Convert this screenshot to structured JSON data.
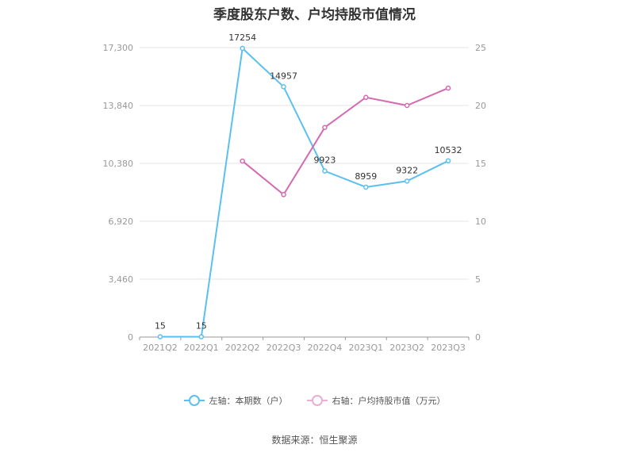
{
  "chart_data": {
    "type": "line",
    "title": "季度股东户数、户均持股市值情况",
    "categories": [
      "2021Q2",
      "2022Q1",
      "2022Q2",
      "2022Q3",
      "2022Q4",
      "2023Q1",
      "2023Q2",
      "2023Q3"
    ],
    "y_left": {
      "range": [
        0,
        17300
      ],
      "ticks": [
        "0",
        "3,460",
        "6,920",
        "10,380",
        "13,840",
        "17,300"
      ]
    },
    "y_right": {
      "range": [
        0,
        25
      ],
      "ticks": [
        "0",
        "5",
        "10",
        "15",
        "20",
        "25"
      ]
    },
    "series": [
      {
        "name": "左轴：本期数（户）",
        "axis": "left",
        "color": "#5bc0f0",
        "values": [
          15,
          15,
          17254,
          14957,
          9923,
          8959,
          9322,
          10532
        ],
        "labels": [
          "15",
          "15",
          "17254",
          "14957",
          "9923",
          "8959",
          "9322",
          "10532"
        ]
      },
      {
        "name": "右轴：户均持股市值（万元）",
        "axis": "right",
        "color": "#d46ab0",
        "values": [
          null,
          null,
          15.2,
          12.3,
          18.1,
          20.7,
          20.0,
          21.5
        ]
      }
    ],
    "grid": true,
    "legend_position": "bottom"
  },
  "source": "数据来源：恒生聚源"
}
